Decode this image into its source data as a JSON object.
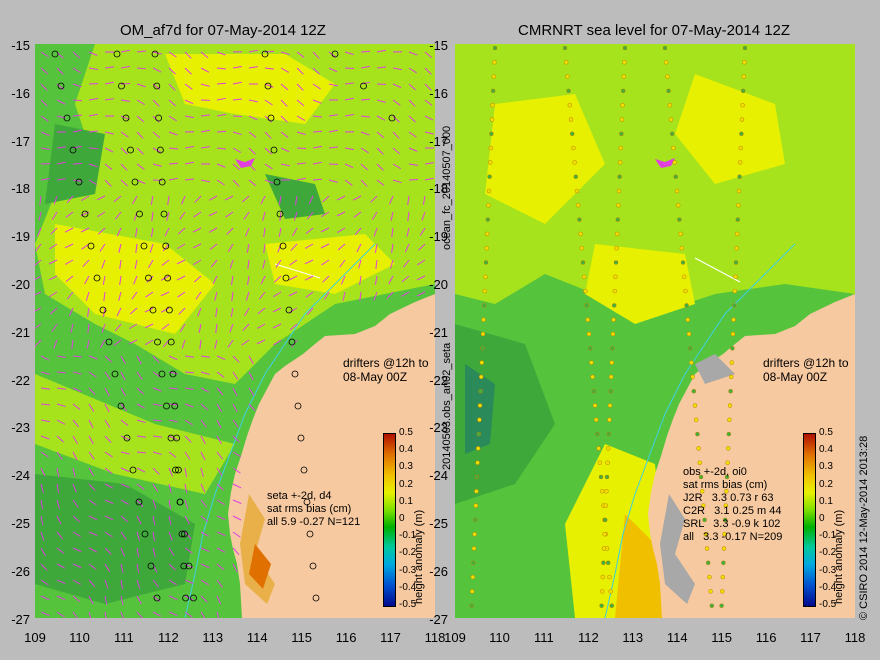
{
  "titles": {
    "left": "OM_af7d for 07-May-2014 12Z",
    "right": "CMRNRT sea level  for 07-May-2014 12Z"
  },
  "axes": {
    "y_labels": [
      "-15",
      "-16",
      "-17",
      "-18",
      "-19",
      "-20",
      "-21",
      "-22",
      "-23",
      "-24",
      "-25",
      "-26",
      "-27"
    ],
    "x_labels": [
      "109",
      "110",
      "111",
      "112",
      "113",
      "114",
      "115",
      "116",
      "117",
      "118"
    ]
  },
  "drifters_label": "drifters @12h to\n08-May 00Z",
  "left_stats": "seta +-2d, d4\nsat rms bias (cm)\nall 5.9 -0.27 N=121",
  "right_stats": "obs +-2d, oi0\nsat rms bias (cm)\nJ2R   3.3 0.73 r 63\nC2R   3.1 0.25 m 44\nSRL   3.3 -0.9 k 102\nall   3.3 -0.17 N=209",
  "colorbar": {
    "label": "height anomaly (m)",
    "ticks": [
      "0.5",
      "0.4",
      "0.3",
      "0.2",
      "0.1",
      "0",
      "-0.1",
      "-0.2",
      "-0.3",
      "-0.4",
      "-0.5"
    ]
  },
  "side_labels": {
    "forecast": "ocean_fc_20140507_000",
    "obs": "20140503.obs_an02_seta",
    "copyright": "© CSIRO 2014   12-May-2014 2013:28"
  },
  "colors": {
    "land": "#f7c9a0",
    "ocean_green": "#56c33c",
    "ocean_yellow": "#e6f000",
    "vectors": "#e040e0"
  }
}
